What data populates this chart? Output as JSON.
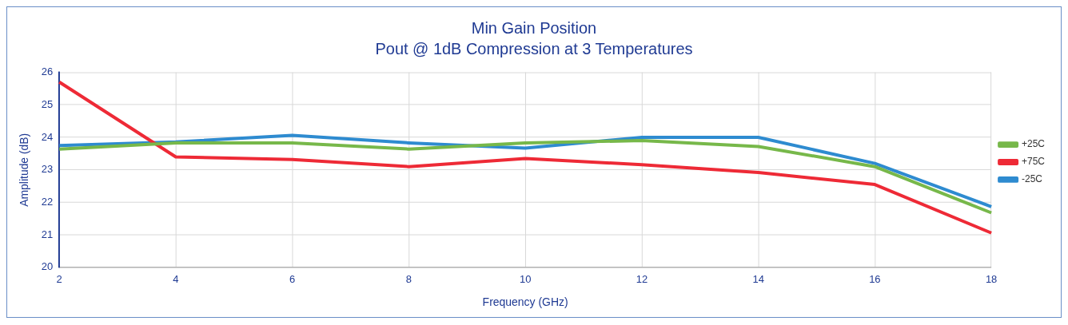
{
  "chart_data": {
    "type": "line",
    "title": "Min Gain Position",
    "subtitle": "Pout @ 1dB Compression at 3 Temperatures",
    "xlabel": "Frequency (GHz)",
    "ylabel": "Amplitude (dB)",
    "categories": [
      "2",
      "4",
      "6",
      "8",
      "10",
      "12",
      "14",
      "16",
      "18"
    ],
    "series": [
      {
        "name": "+25C",
        "color": "#77b84a",
        "values": [
          23.64,
          23.83,
          23.83,
          23.64,
          23.83,
          23.9,
          23.72,
          23.1,
          21.68
        ]
      },
      {
        "name": "+75C",
        "color": "#ee2a36",
        "values": [
          25.7,
          23.4,
          23.32,
          23.1,
          23.35,
          23.16,
          22.92,
          22.55,
          21.06
        ]
      },
      {
        "name": "-25C",
        "color": "#2e8bd0",
        "values": [
          23.75,
          23.86,
          24.06,
          23.83,
          23.67,
          24.0,
          24.0,
          23.2,
          21.87
        ]
      }
    ],
    "ylim": [
      20,
      26
    ],
    "yticks": [
      20,
      21,
      22,
      23,
      24,
      25,
      26
    ],
    "grid": true,
    "legend": "right",
    "marker": "none",
    "line_style": "solid"
  }
}
